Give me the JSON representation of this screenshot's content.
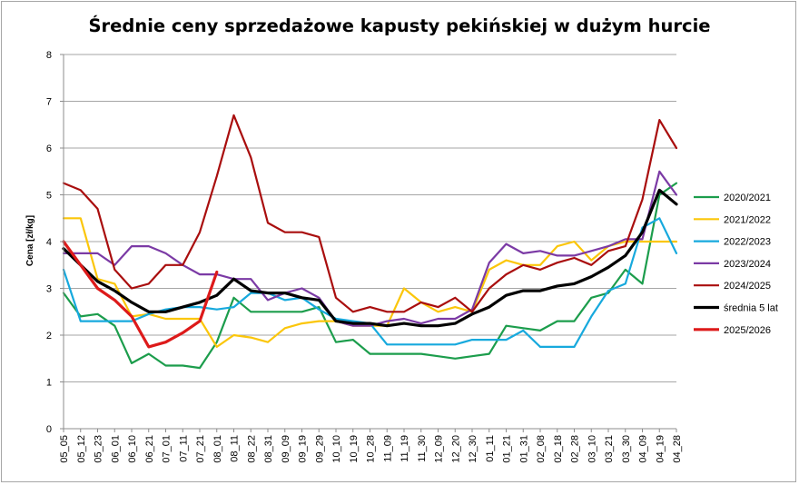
{
  "chart_data": {
    "type": "line",
    "title": "Średnie ceny sprzedażowe kapusty pekińskiej w dużym hurcie",
    "ylabel": "Cena [zł/kg]",
    "xlabel": "",
    "ylim": [
      0,
      8
    ],
    "yticks": [
      0,
      1,
      2,
      3,
      4,
      5,
      6,
      7,
      8
    ],
    "grid": "horizontal",
    "legend_position": "right",
    "x": [
      "05_05",
      "05_12",
      "05_23",
      "06_01",
      "06_10",
      "06_21",
      "07_01",
      "07_11",
      "07_21",
      "08_01",
      "08_11",
      "08_22",
      "08_31",
      "09_09",
      "09_19",
      "09_29",
      "10_10",
      "10_19",
      "10_28",
      "11_09",
      "11_19",
      "11_30",
      "12_09",
      "12_20",
      "12_30",
      "01_11",
      "01_21",
      "01_31",
      "02_08",
      "02_18",
      "02_28",
      "03_10",
      "03_21",
      "03_30",
      "04_09",
      "04_19",
      "04_28"
    ],
    "series": [
      {
        "name": "2020/2021",
        "color": "#1c9d4c",
        "width": 2.2,
        "values": [
          2.9,
          2.4,
          2.45,
          2.2,
          1.4,
          1.6,
          1.35,
          1.35,
          1.3,
          1.85,
          2.8,
          2.5,
          2.5,
          2.5,
          2.5,
          2.6,
          1.85,
          1.9,
          1.6,
          1.6,
          1.6,
          1.6,
          1.55,
          1.5,
          1.55,
          1.6,
          2.2,
          2.15,
          2.1,
          2.3,
          2.3,
          2.8,
          2.9,
          3.4,
          3.1,
          5.0,
          5.25
        ]
      },
      {
        "name": "2021/2022",
        "color": "#fbc60a",
        "width": 2.2,
        "values": [
          4.5,
          4.5,
          3.2,
          3.1,
          2.4,
          2.45,
          2.35,
          2.35,
          2.35,
          1.75,
          2.0,
          1.95,
          1.85,
          2.15,
          2.25,
          2.3,
          2.3,
          2.2,
          2.2,
          2.2,
          3.0,
          2.7,
          2.5,
          2.6,
          2.5,
          3.4,
          3.6,
          3.5,
          3.5,
          3.9,
          4.0,
          3.6,
          3.9,
          4.0,
          4.0,
          4.0,
          4.0
        ]
      },
      {
        "name": "2022/2023",
        "color": "#17a9dd",
        "width": 2.2,
        "values": [
          3.4,
          2.3,
          2.3,
          2.3,
          2.3,
          2.45,
          2.55,
          2.6,
          2.6,
          2.55,
          2.6,
          2.9,
          2.9,
          2.75,
          2.8,
          2.55,
          2.35,
          2.3,
          2.25,
          1.8,
          1.8,
          1.8,
          1.8,
          1.8,
          1.9,
          1.9,
          1.9,
          2.1,
          1.75,
          1.75,
          1.75,
          2.4,
          2.95,
          3.1,
          4.3,
          4.5,
          3.75
        ]
      },
      {
        "name": "2023/2024",
        "color": "#7b3aa5",
        "width": 2.2,
        "values": [
          3.75,
          3.75,
          3.75,
          3.5,
          3.9,
          3.9,
          3.75,
          3.5,
          3.3,
          3.3,
          3.2,
          3.2,
          2.75,
          2.9,
          3.0,
          2.8,
          2.3,
          2.2,
          2.2,
          2.3,
          2.35,
          2.25,
          2.35,
          2.35,
          2.55,
          3.55,
          3.95,
          3.75,
          3.8,
          3.7,
          3.7,
          3.8,
          3.9,
          4.05,
          4.05,
          5.5,
          5.0
        ]
      },
      {
        "name": "2024/2025",
        "color": "#a90e0e",
        "width": 2.2,
        "values": [
          5.25,
          5.1,
          4.7,
          3.4,
          3.0,
          3.1,
          3.5,
          3.5,
          4.2,
          5.4,
          6.7,
          5.8,
          4.4,
          4.2,
          4.2,
          4.1,
          2.8,
          2.5,
          2.6,
          2.5,
          2.5,
          2.7,
          2.6,
          2.8,
          2.5,
          3.0,
          3.3,
          3.5,
          3.4,
          3.55,
          3.65,
          3.5,
          3.8,
          3.9,
          4.9,
          6.6,
          6.0
        ]
      },
      {
        "name": "średnia 5 lat",
        "color": "#000000",
        "width": 3.2,
        "values": [
          3.85,
          3.5,
          3.15,
          2.95,
          2.7,
          2.5,
          2.5,
          2.6,
          2.7,
          2.85,
          3.2,
          2.95,
          2.9,
          2.9,
          2.8,
          2.75,
          2.3,
          2.25,
          2.25,
          2.2,
          2.25,
          2.2,
          2.2,
          2.25,
          2.45,
          2.6,
          2.85,
          2.95,
          2.95,
          3.05,
          3.1,
          3.25,
          3.45,
          3.7,
          4.2,
          5.1,
          4.8
        ]
      },
      {
        "name": "2025/2026",
        "color": "#dd1a1a",
        "width": 3.2,
        "values": [
          4.0,
          3.5,
          3.0,
          2.75,
          2.4,
          1.75,
          1.85,
          2.05,
          2.3,
          3.35,
          null,
          null,
          null,
          null,
          null,
          null,
          null,
          null,
          null,
          null,
          null,
          null,
          null,
          null,
          null,
          null,
          null,
          null,
          null,
          null,
          null,
          null,
          null,
          null,
          null,
          null,
          null
        ]
      }
    ]
  }
}
